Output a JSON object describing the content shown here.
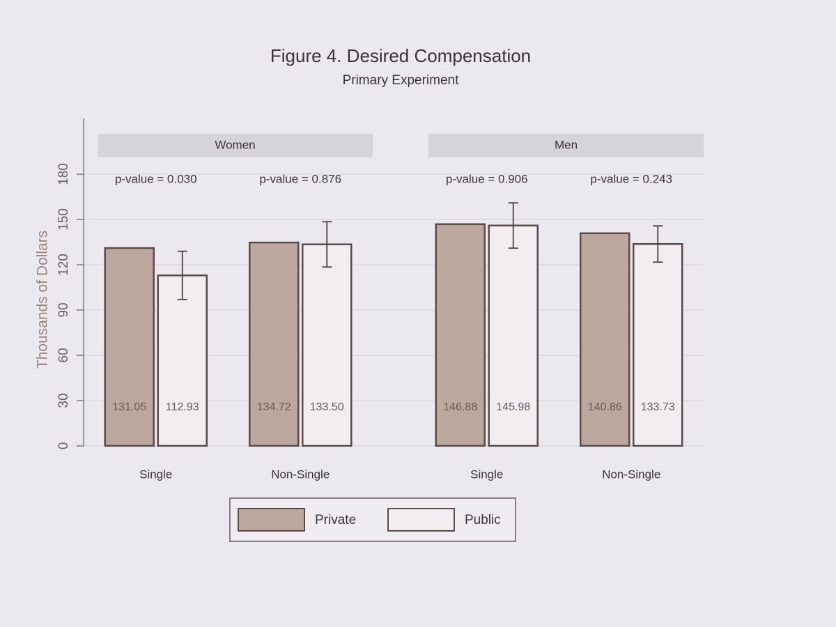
{
  "chart_data": {
    "type": "bar",
    "title": "Figure 4. Desired Compensation",
    "subtitle": "Primary Experiment",
    "y_label": "Thousands of Dollars",
    "ylim": [
      0,
      180
    ],
    "yticks": [
      0,
      30,
      60,
      90,
      120,
      150,
      180
    ],
    "grid": true,
    "legend_position": "bottom",
    "panels": [
      {
        "title": "Women"
      },
      {
        "title": "Men"
      }
    ],
    "categories": [
      "Single",
      "Non-Single",
      "Single",
      "Non-Single"
    ],
    "annotations": [
      "p-value = 0.030",
      "p-value = 0.876",
      "p-value = 0.906",
      "p-value = 0.243"
    ],
    "series": [
      {
        "name": "Private",
        "color": "#bca79f",
        "values": [
          131.05,
          134.72,
          146.88,
          140.86
        ],
        "value_labels": [
          "131.05",
          "134.72",
          "146.88",
          "140.86"
        ]
      },
      {
        "name": "Public",
        "color": "#f1edf1",
        "values": [
          112.93,
          133.5,
          145.98,
          133.73
        ],
        "value_labels": [
          "112.93",
          "133.50",
          "145.98",
          "133.73"
        ],
        "errors": [
          16,
          15,
          15,
          12
        ]
      }
    ]
  }
}
